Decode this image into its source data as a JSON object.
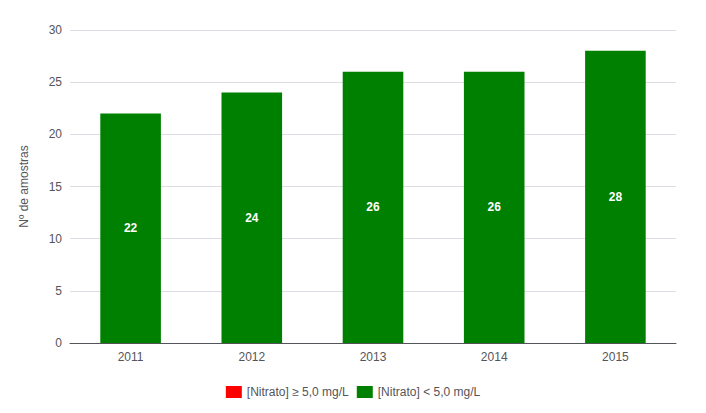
{
  "chart_data": {
    "type": "bar",
    "ylabel": "Nº de amostras",
    "categories": [
      "2011",
      "2012",
      "2013",
      "2014",
      "2015"
    ],
    "series": [
      {
        "name": "[Nitrato] ≥ 5,0 mg/L",
        "color": "#FF0000",
        "values": [
          null,
          null,
          null,
          null,
          null
        ]
      },
      {
        "name": "[Nitrato] < 5,0 mg/L",
        "color": "#008000",
        "values": [
          22,
          24,
          26,
          26,
          28
        ]
      }
    ],
    "ylim": [
      0,
      30
    ],
    "yticks": [
      0,
      5,
      10,
      15,
      20,
      25,
      30
    ],
    "grid": true,
    "legend": "bottom",
    "data_labels": true
  }
}
